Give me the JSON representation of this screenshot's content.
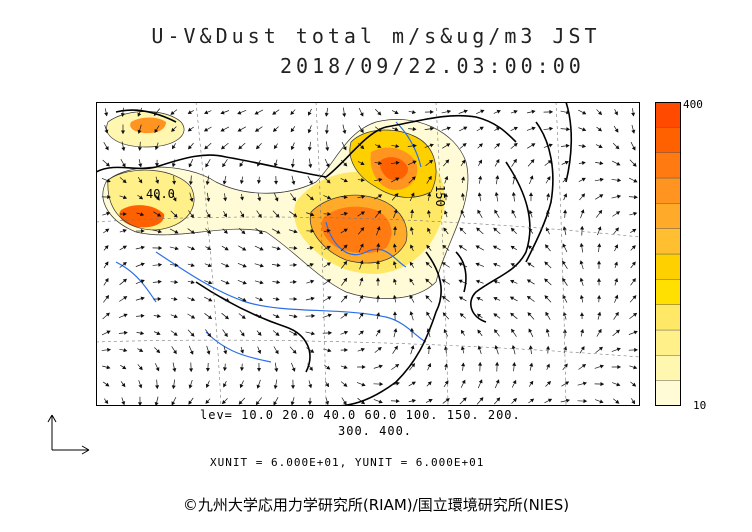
{
  "header": {
    "title": "U-V&Dust total m/s&ug/m3 JST",
    "timestamp": "2018/09/22.03:00:00"
  },
  "map": {
    "contour_labels": [
      "40.0",
      "150"
    ]
  },
  "colorbar": {
    "max_label": "400",
    "min_label": "10",
    "colors": [
      "#fffbd6",
      "#fff6b0",
      "#fff08a",
      "#ffe866",
      "#ffe000",
      "#ffd000",
      "#ffbf30",
      "#ffaa28",
      "#ff9420",
      "#ff7a10",
      "#ff6000",
      "#ff4a00"
    ]
  },
  "legend": {
    "levels_line1": "lev= 10.0 20.0 40.0 60.0 100. 150. 200.",
    "levels_line2": "300. 400.",
    "units": "XUNIT = 6.000E+01, YUNIT = 6.000E+01"
  },
  "footer": {
    "copyright": "©九州大学応用力学研究所(RIAM)/国立環境研究所(NIES)"
  }
}
